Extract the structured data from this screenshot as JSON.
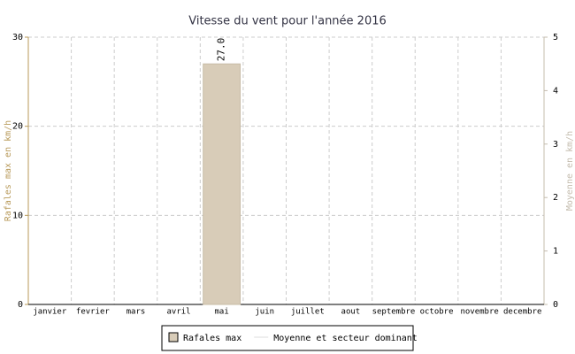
{
  "chart_data": {
    "type": "bar",
    "title": "Vitesse du vent pour l'année 2016",
    "y_label": "Rafales max en km/h",
    "y2_label": "Moyenne en km/h",
    "categories": [
      "janvier",
      "fevrier",
      "mars",
      "avril",
      "mai",
      "juin",
      "juillet",
      "aout",
      "septembre",
      "octobre",
      "novembre",
      "decembre"
    ],
    "series": [
      {
        "name": "Rafales max",
        "color": "#d8ccb8",
        "values": [
          null,
          null,
          null,
          null,
          27,
          null,
          null,
          null,
          null,
          null,
          null,
          null
        ],
        "value_labels": [
          null,
          null,
          null,
          null,
          "27.0",
          null,
          null,
          null,
          null,
          null,
          null,
          null
        ]
      },
      {
        "name": "Moyenne et secteur dominant",
        "color": "#dddddd",
        "axis": "y2",
        "values": [
          null,
          null,
          null,
          null,
          null,
          null,
          null,
          null,
          null,
          null,
          null,
          null
        ]
      }
    ],
    "ylim": [
      0,
      30
    ],
    "yticks": [
      0,
      10,
      20,
      30
    ],
    "y2lim": [
      0,
      5
    ],
    "y2ticks": [
      0,
      1,
      2,
      3,
      4,
      5
    ],
    "grid": true
  }
}
